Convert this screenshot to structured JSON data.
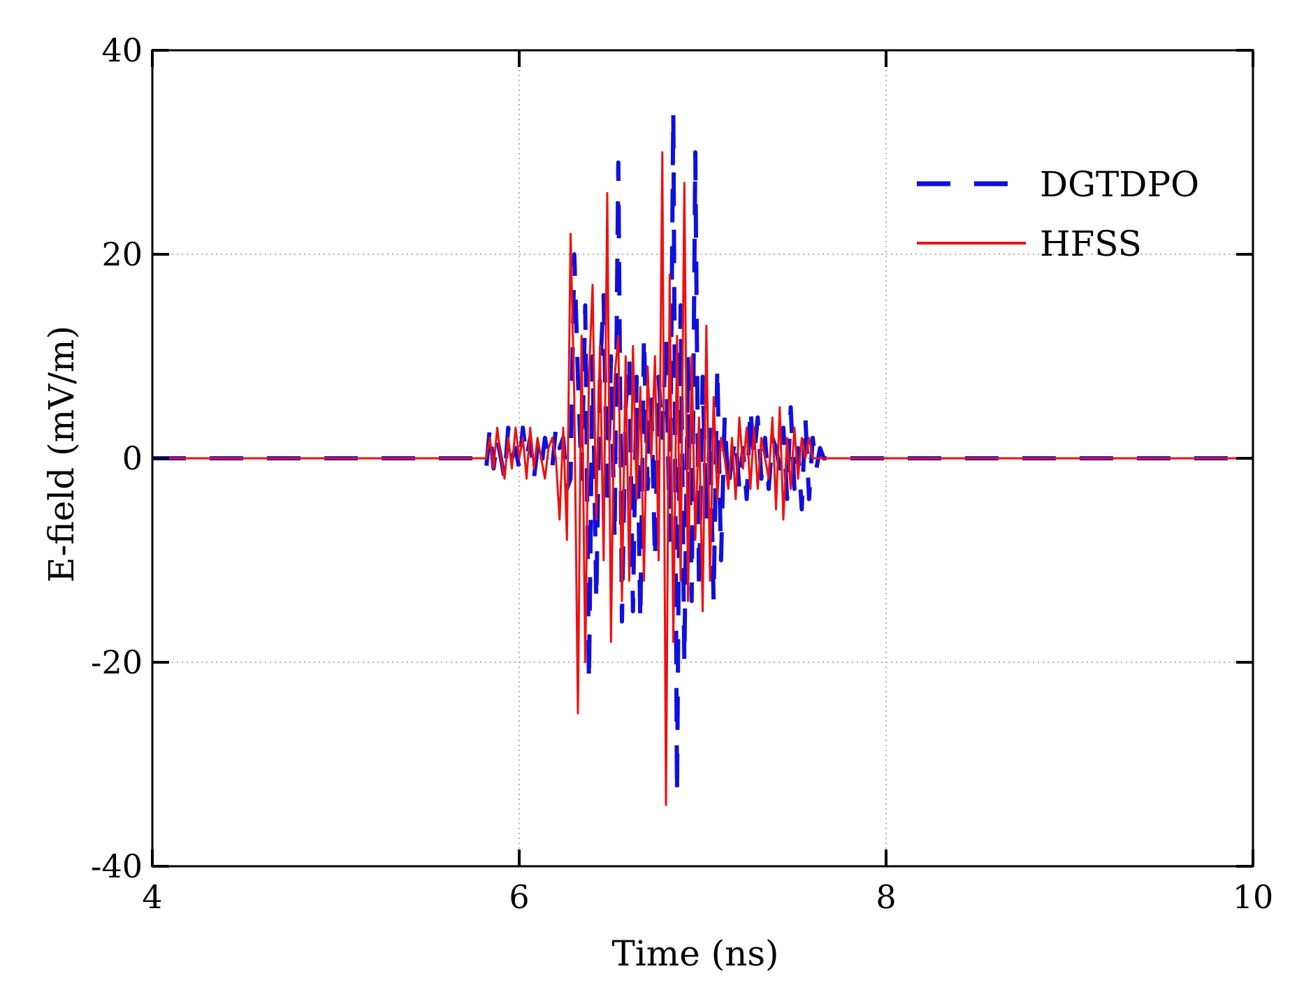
{
  "chart_data": {
    "type": "line",
    "xlabel": "Time (ns)",
    "ylabel": "E-field (mV/m)",
    "xlim": [
      4,
      10
    ],
    "ylim": [
      -40,
      40
    ],
    "xticks": [
      4,
      6,
      8,
      10
    ],
    "yticks": [
      -40,
      -20,
      0,
      20,
      40
    ],
    "xtick_labels": [
      "4",
      "6",
      "8",
      "10"
    ],
    "ytick_labels": [
      "-40",
      "-20",
      "0",
      "20",
      "40"
    ],
    "grid": "dotted at interior ticks",
    "legend_position": "top-right",
    "series": [
      {
        "name": "DGTDPO",
        "color": "#1010dd",
        "style": "dashed",
        "x": [
          4.0,
          5.8,
          5.82,
          5.84,
          5.86,
          5.88,
          5.9,
          5.92,
          5.94,
          5.96,
          5.98,
          6.0,
          6.02,
          6.04,
          6.06,
          6.08,
          6.1,
          6.12,
          6.14,
          6.16,
          6.18,
          6.2,
          6.22,
          6.24,
          6.26,
          6.28,
          6.3,
          6.32,
          6.34,
          6.36,
          6.38,
          6.4,
          6.42,
          6.44,
          6.46,
          6.48,
          6.5,
          6.52,
          6.54,
          6.56,
          6.58,
          6.6,
          6.62,
          6.64,
          6.66,
          6.68,
          6.7,
          6.72,
          6.74,
          6.76,
          6.78,
          6.8,
          6.82,
          6.84,
          6.86,
          6.88,
          6.9,
          6.92,
          6.94,
          6.96,
          6.98,
          7.0,
          7.02,
          7.04,
          7.06,
          7.08,
          7.1,
          7.12,
          7.14,
          7.16,
          7.18,
          7.2,
          7.22,
          7.24,
          7.26,
          7.28,
          7.3,
          7.32,
          7.34,
          7.36,
          7.38,
          7.4,
          7.42,
          7.44,
          7.46,
          7.48,
          7.5,
          7.52,
          7.54,
          7.56,
          7.58,
          7.6,
          7.62,
          7.64,
          7.66,
          7.68,
          7.7,
          10.0
        ],
        "y": [
          0,
          0,
          -1,
          3,
          -1,
          2,
          0,
          -2,
          3,
          0,
          1,
          -1,
          3,
          0,
          2,
          -2,
          1,
          -1,
          2,
          0,
          -1,
          3,
          1,
          2,
          -3,
          -2,
          20,
          8,
          -2,
          15,
          -22,
          10,
          -14,
          8,
          16,
          -5,
          10,
          -8,
          29,
          -16,
          5,
          10,
          -15,
          8,
          -16,
          12,
          -3,
          6,
          -10,
          8,
          2,
          12,
          -8,
          34,
          -33,
          15,
          -20,
          10,
          -14,
          30,
          -13,
          8,
          -6,
          3,
          -14,
          9,
          -10,
          4,
          -3,
          0,
          2,
          -3,
          1,
          -4,
          5,
          0,
          4,
          -2,
          2,
          -3,
          2,
          1,
          -1,
          3,
          -4,
          5,
          -3,
          1,
          -5,
          4,
          -4,
          2,
          -1,
          1,
          0,
          0,
          0,
          0
        ]
      },
      {
        "name": "HFSS",
        "color": "#ee1111",
        "style": "solid",
        "x": [
          4.0,
          5.82,
          5.84,
          5.86,
          5.88,
          5.9,
          5.92,
          5.94,
          5.96,
          5.98,
          6.0,
          6.02,
          6.04,
          6.06,
          6.08,
          6.1,
          6.12,
          6.14,
          6.16,
          6.18,
          6.2,
          6.22,
          6.24,
          6.26,
          6.28,
          6.3,
          6.32,
          6.34,
          6.36,
          6.38,
          6.4,
          6.42,
          6.44,
          6.46,
          6.48,
          6.5,
          6.52,
          6.54,
          6.56,
          6.58,
          6.6,
          6.62,
          6.64,
          6.66,
          6.68,
          6.7,
          6.72,
          6.74,
          6.76,
          6.78,
          6.8,
          6.82,
          6.84,
          6.86,
          6.88,
          6.9,
          6.92,
          6.94,
          6.96,
          6.98,
          7.0,
          7.02,
          7.04,
          7.06,
          7.08,
          7.1,
          7.12,
          7.14,
          7.16,
          7.18,
          7.2,
          7.22,
          7.24,
          7.26,
          7.28,
          7.3,
          7.32,
          7.34,
          7.36,
          7.38,
          7.4,
          7.42,
          7.44,
          7.46,
          7.48,
          7.5,
          7.52,
          7.54,
          7.56,
          7.58,
          7.6,
          7.62,
          7.64,
          7.66,
          7.68,
          7.7,
          10.0
        ],
        "y": [
          0,
          0,
          2,
          -1,
          3,
          0,
          -2,
          2,
          -1,
          3,
          0,
          2,
          -2,
          3,
          -1,
          2,
          0,
          -2,
          1,
          2,
          0,
          -6,
          3,
          -8,
          22,
          6,
          -25,
          12,
          -20,
          8,
          17,
          -6,
          11,
          -10,
          26,
          -18,
          8,
          12,
          -14,
          10,
          -12,
          11,
          -4,
          7,
          -12,
          9,
          0,
          10,
          -10,
          30,
          -34,
          18,
          -18,
          12,
          -12,
          27,
          -14,
          10,
          -8,
          4,
          -15,
          13,
          -12,
          6,
          -4,
          2,
          0,
          -3,
          2,
          -4,
          4,
          -1,
          3,
          -3,
          3,
          -3,
          2,
          0,
          -2,
          4,
          -5,
          5,
          -6,
          2,
          -3,
          3,
          -2,
          2,
          0,
          2,
          0,
          0,
          0,
          0,
          0,
          0,
          0
        ]
      }
    ]
  }
}
